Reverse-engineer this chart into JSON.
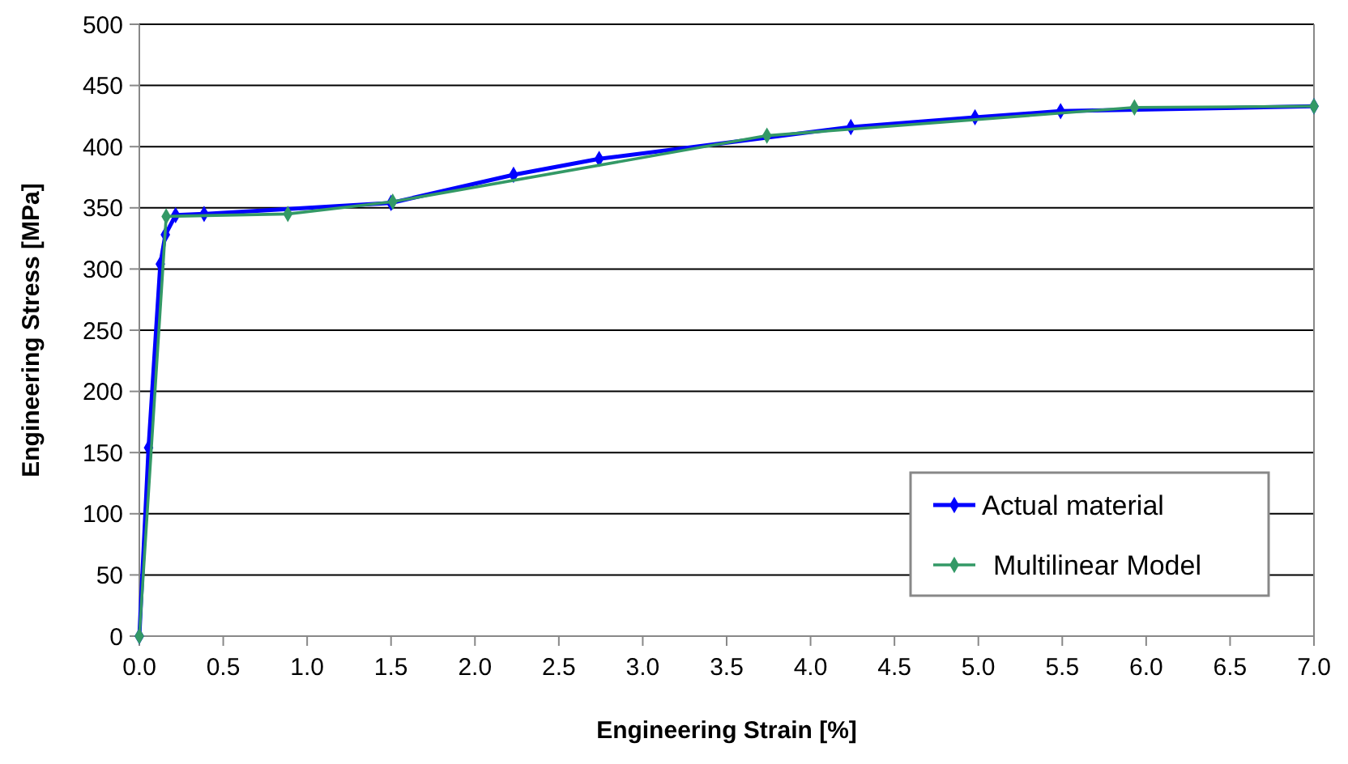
{
  "chart_data": {
    "type": "line",
    "xlabel": "Engineering Strain [%]",
    "ylabel": "Engineering Stress [MPa]",
    "xlim": [
      0,
      7
    ],
    "xticks": [
      {
        "value": 0,
        "label": "0.0"
      },
      {
        "value": 0.5,
        "label": "0.5"
      },
      {
        "value": 1,
        "label": "1.0"
      },
      {
        "value": 1.5,
        "label": "1.5"
      },
      {
        "value": 2,
        "label": "2.0"
      },
      {
        "value": 2.5,
        "label": "2.5"
      },
      {
        "value": 3,
        "label": "3.0"
      },
      {
        "value": 3.5,
        "label": "3.5"
      },
      {
        "value": 4,
        "label": "4.0"
      },
      {
        "value": 4.5,
        "label": "4.5"
      },
      {
        "value": 5,
        "label": "5.0"
      },
      {
        "value": 5.5,
        "label": "5.5"
      },
      {
        "value": 6,
        "label": "6.0"
      },
      {
        "value": 6.5,
        "label": "6.5"
      },
      {
        "value": 7,
        "label": "7.0"
      }
    ],
    "ylim": [
      0,
      500
    ],
    "yticks": [
      0,
      50,
      100,
      150,
      200,
      250,
      300,
      350,
      400,
      450,
      500
    ],
    "grid": "y",
    "legend": "bottom right",
    "marker": "diamond",
    "line_style": "solid",
    "series": [
      {
        "name": "Actual material",
        "color": "#0000ff",
        "x": [
          0,
          0.055,
          0.125,
          0.155,
          0.216,
          0.386,
          1.5,
          2.23,
          2.74,
          4.24,
          4.98,
          5.49,
          7.0
        ],
        "values": [
          0,
          154,
          304,
          328,
          344,
          345,
          354,
          377,
          390,
          416,
          424,
          429,
          433
        ]
      },
      {
        "name": "Multilinear Model",
        "color": "#339966",
        "x": [
          0,
          0.16,
          0.885,
          1.51,
          3.74,
          5.93,
          7.0
        ],
        "values": [
          0,
          343,
          345,
          355,
          409,
          432,
          433
        ]
      }
    ]
  }
}
